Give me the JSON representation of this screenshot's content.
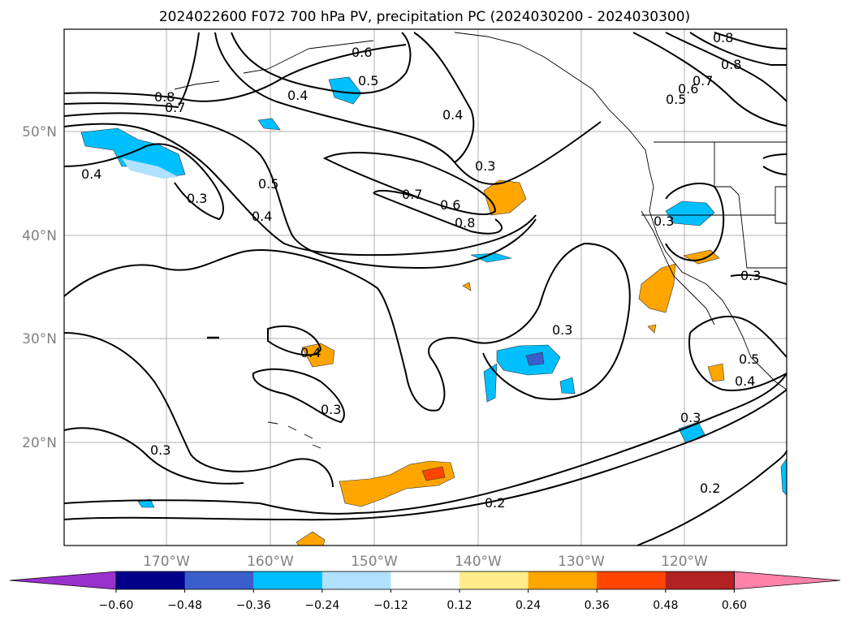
{
  "title": "2024022600 F072 700 hPa PV, precipitation PC (2024030200 - 2024030300)",
  "longitude_ticks": [
    "170°W",
    "160°W",
    "150°W",
    "140°W",
    "130°W",
    "120°W"
  ],
  "latitude_ticks": [
    "50°N",
    "40°N",
    "30°N",
    "20°N"
  ],
  "colorbar": {
    "ticks": [
      "−0.60",
      "−0.48",
      "−0.36",
      "−0.24",
      "−0.12",
      "0.12",
      "0.24",
      "0.36",
      "0.48",
      "0.60"
    ],
    "colors": [
      "#9932cc",
      "#00008b",
      "#3a5fcd",
      "#00bfff",
      "#b0e2ff",
      "#ffffff",
      "#ffec8b",
      "#ffa500",
      "#ff4500",
      "#b22222",
      "#ff82ab"
    ]
  },
  "contour_labels": [
    {
      "id": "c1",
      "text": "0.6"
    },
    {
      "id": "c2",
      "text": "0.5"
    },
    {
      "id": "c3",
      "text": "0.4"
    },
    {
      "id": "c4",
      "text": "0.8"
    },
    {
      "id": "c5",
      "text": "0.7"
    },
    {
      "id": "c6",
      "text": "0.4"
    },
    {
      "id": "c7",
      "text": "0.3"
    },
    {
      "id": "c8",
      "text": "0.5"
    },
    {
      "id": "c9",
      "text": "0.4"
    },
    {
      "id": "c10",
      "text": "0.4"
    },
    {
      "id": "c11",
      "text": "0.3"
    },
    {
      "id": "c12",
      "text": "0.7"
    },
    {
      "id": "c13",
      "text": "0.6"
    },
    {
      "id": "c14",
      "text": "0.8"
    },
    {
      "id": "c15",
      "text": "0.8"
    },
    {
      "id": "c16",
      "text": "0.8"
    },
    {
      "id": "c17",
      "text": "0.7"
    },
    {
      "id": "c18",
      "text": "0.6"
    },
    {
      "id": "c19",
      "text": "0.5"
    },
    {
      "id": "c20",
      "text": "0.3"
    },
    {
      "id": "c21",
      "text": "0.3"
    },
    {
      "id": "c22",
      "text": "0.4"
    },
    {
      "id": "c23",
      "text": "0.3"
    },
    {
      "id": "c24",
      "text": "0.3"
    },
    {
      "id": "c25",
      "text": "0.3"
    },
    {
      "id": "c26",
      "text": "0.5"
    },
    {
      "id": "c27",
      "text": "0.4"
    },
    {
      "id": "c28",
      "text": "0.3"
    },
    {
      "id": "c29",
      "text": "0.2"
    },
    {
      "id": "c30",
      "text": "0.2"
    }
  ]
}
